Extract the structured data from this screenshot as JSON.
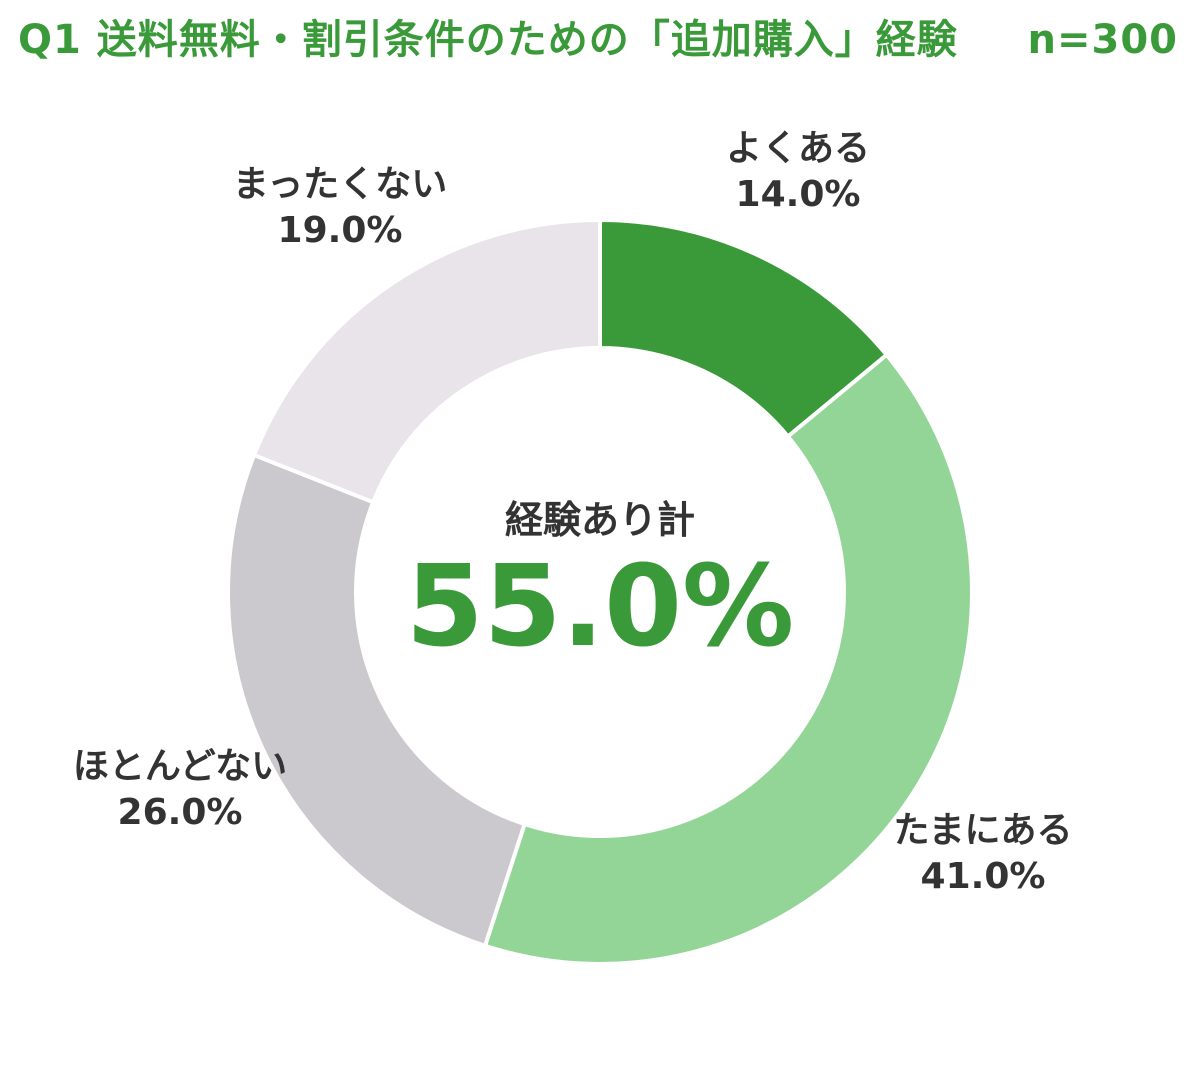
{
  "chart_data": {
    "type": "pie",
    "title": "Q1 送料無料・割引条件のための「追加購入」経験",
    "sample_size": "n=300",
    "categories": [
      "よくある",
      "たまにある",
      "ほとんどない",
      "まったくない"
    ],
    "values": [
      14.0,
      41.0,
      26.0,
      19.0
    ],
    "value_labels": [
      "14.0%",
      "41.0%",
      "26.0%",
      "19.0%"
    ],
    "colors": [
      "#3a9a3a",
      "#93d596",
      "#cbc9cd",
      "#e8e4ea"
    ],
    "center": {
      "caption": "経験あり計",
      "value": "55.0%"
    },
    "legend": "none"
  }
}
